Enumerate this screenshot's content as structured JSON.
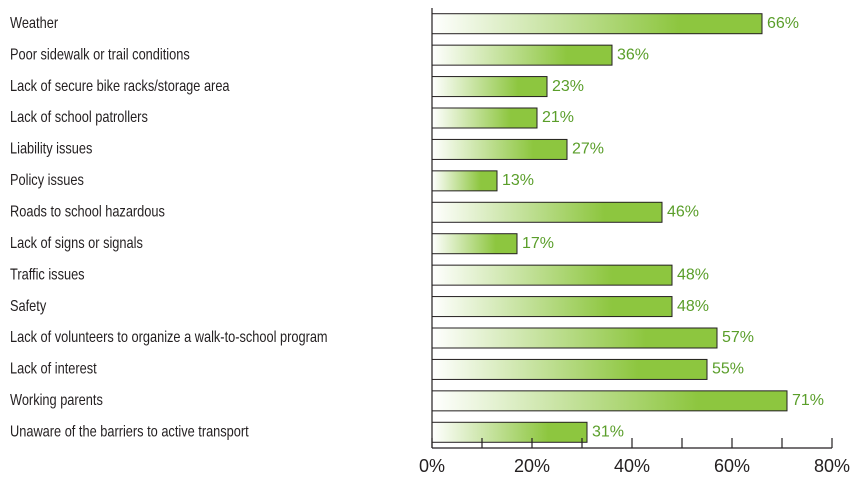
{
  "chart_data": {
    "type": "hbar",
    "categories": [
      "Weather",
      "Poor sidewalk or trail conditions",
      "Lack of secure bike racks/storage area",
      "Lack of school patrollers",
      "Liability issues",
      "Policy issues",
      "Roads to school hazardous",
      "Lack of signs or signals",
      "Traffic issues",
      "Safety",
      "Lack of volunteers to organize a walk-to-school program",
      "Lack of interest",
      "Working parents",
      "Unaware of the barriers to active transport"
    ],
    "values": [
      66,
      36,
      23,
      21,
      27,
      13,
      46,
      17,
      48,
      48,
      57,
      55,
      71,
      31
    ],
    "value_labels": [
      "66%",
      "36%",
      "23%",
      "21%",
      "27%",
      "13%",
      "46%",
      "17%",
      "48%",
      "48%",
      "57%",
      "55%",
      "71%",
      "31%"
    ],
    "color": "#8dc63f",
    "label_color": "#5a9e2a",
    "xlim": [
      0,
      80
    ],
    "xticks": [
      {
        "value": 0,
        "label": "0%"
      },
      {
        "value": 20,
        "label": "20%"
      },
      {
        "value": 40,
        "label": "40%"
      },
      {
        "value": 60,
        "label": "60%"
      },
      {
        "value": 80,
        "label": "80%"
      }
    ],
    "minor_xticks": [
      10,
      30,
      50,
      70
    ]
  }
}
